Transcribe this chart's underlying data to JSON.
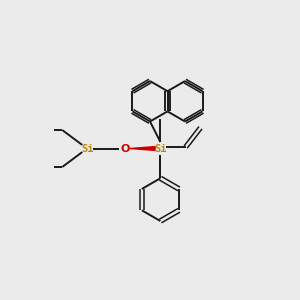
{
  "bg_color": "#ebebeb",
  "bond_color": "#1a1a1a",
  "si_color": "#b8860b",
  "o_color": "#cc0000",
  "si_label": "Si",
  "o_label": "O",
  "figsize": [
    3.0,
    3.0
  ],
  "dpi": 100,
  "lw": 1.4,
  "lw_double": 1.1,
  "ring_r": 0.72,
  "naph_r": 0.68
}
